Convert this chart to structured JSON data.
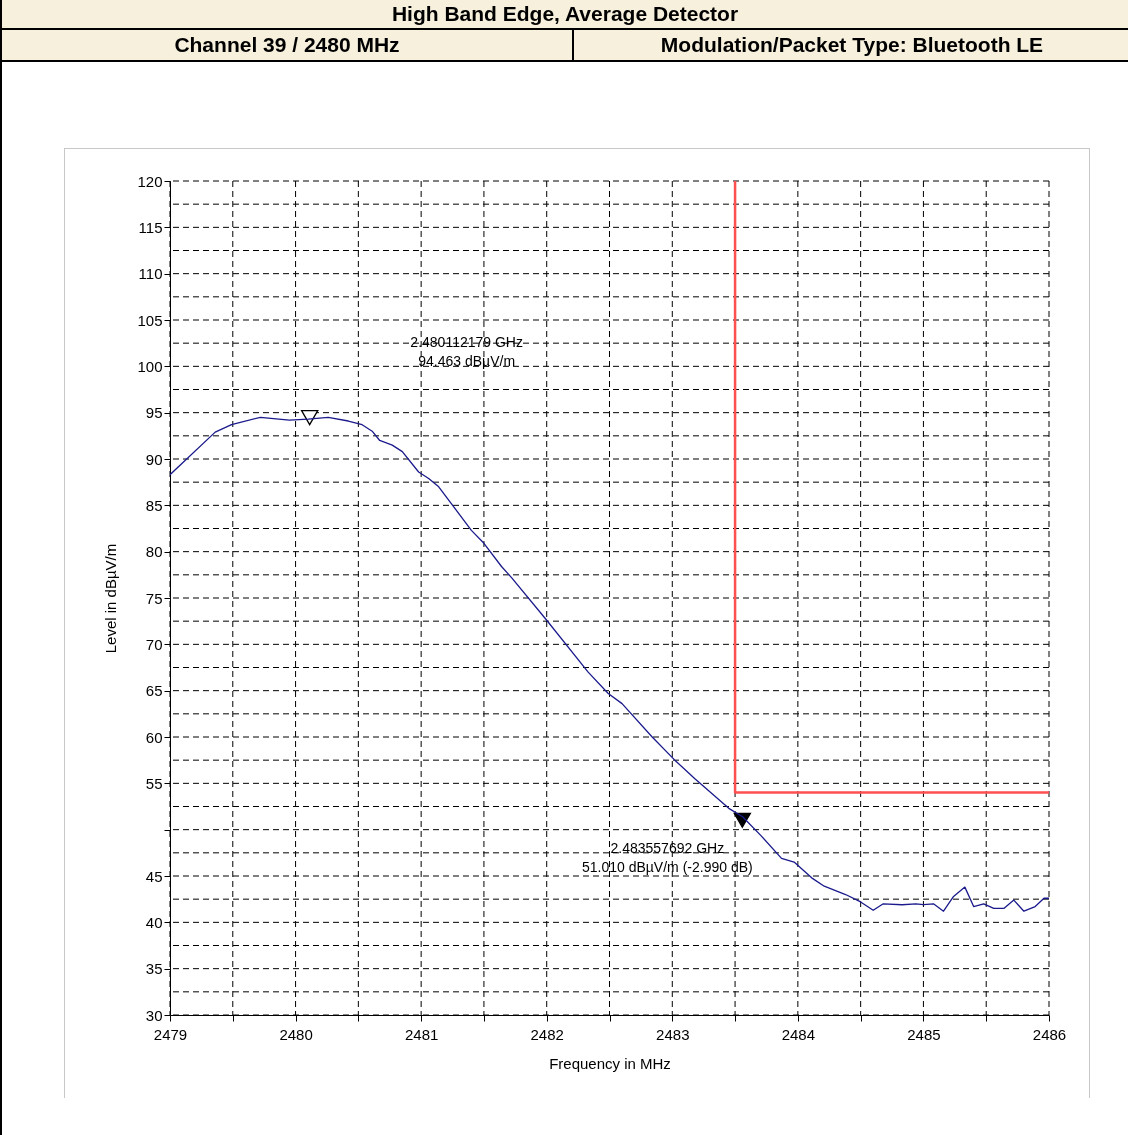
{
  "chart_data": {
    "type": "line",
    "title": "High Band Edge, Average Detector",
    "subtitle": [
      "Channel 39 / 2480 MHz",
      "Modulation/Packet Type: Bluetooth LE"
    ],
    "xlabel": "Frequency in MHz",
    "ylabel": "Level in dBµV/m",
    "xlim": [
      2479,
      2486
    ],
    "ylim": [
      30,
      120
    ],
    "xticks": [
      2479,
      {
        "value": 2479.5,
        "label": null
      },
      2480,
      {
        "value": 2480.5,
        "label": null
      },
      2481,
      {
        "value": 2481.5,
        "label": null
      },
      2482,
      {
        "value": 2482.5,
        "label": null
      },
      2483,
      {
        "value": 2483.5,
        "label": null
      },
      2484,
      {
        "value": 2484.5,
        "label": null
      },
      2485,
      {
        "value": 2485.5,
        "label": null
      },
      2486
    ],
    "yticks": [
      30,
      {
        "value": 32.5,
        "label": null
      },
      35,
      {
        "value": 37.5,
        "label": null
      },
      40,
      {
        "value": 42.5,
        "label": null
      },
      45,
      {
        "value": 47.5,
        "label": null
      },
      {
        "value": 50,
        "label": null
      },
      {
        "value": 52.5,
        "label": null
      },
      55,
      {
        "value": 57.5,
        "label": null
      },
      60,
      {
        "value": 62.5,
        "label": null
      },
      65,
      {
        "value": 67.5,
        "label": null
      },
      70,
      {
        "value": 72.5,
        "label": null
      },
      75,
      {
        "value": 77.5,
        "label": null
      },
      80,
      {
        "value": 82.5,
        "label": null
      },
      85,
      {
        "value": 87.5,
        "label": null
      },
      90,
      {
        "value": 92.5,
        "label": null
      },
      95,
      {
        "value": 97.5,
        "label": null
      },
      100,
      {
        "value": 102.5,
        "label": null
      },
      105,
      {
        "value": 107.5,
        "label": null
      },
      110,
      {
        "value": 112.5,
        "label": null
      },
      115,
      {
        "value": 117.5,
        "label": null
      },
      120
    ],
    "grid": true,
    "line_style": "solid",
    "series": [
      {
        "type": "line",
        "color": "#1a1a8c",
        "x": [
          2479,
          2479.36,
          2479.49,
          2479.72,
          2479.95,
          2480.1,
          2480.26,
          2480.42,
          2480.53,
          2480.61,
          2480.67,
          2480.77,
          2480.85,
          2480.98,
          2481.06,
          2481.14,
          2481.4,
          2481.5,
          2481.64,
          2481.72,
          2482,
          2482.33,
          2482.49,
          2482.6,
          2482.84,
          2483.02,
          2483.18,
          2483.45,
          2483.56,
          2483.71,
          2483.87,
          2483.97,
          2484.11,
          2484.21,
          2484.38,
          2484.5,
          2484.6,
          2484.68,
          2484.83,
          2484.94,
          2485,
          2485.08,
          2485.16,
          2485.24,
          2485.33,
          2485.4,
          2485.48,
          2485.56,
          2485.64,
          2485.72,
          2485.8,
          2485.89,
          2485.96,
          2486
        ],
        "values": [
          88.3,
          92.9,
          93.7,
          94.5,
          94.2,
          94.3,
          94.5,
          94.1,
          93.7,
          93,
          92,
          91.5,
          90.8,
          88.6,
          87.9,
          87,
          82.3,
          80.9,
          78.4,
          77.2,
          72.6,
          67,
          64.7,
          63.6,
          60,
          57.5,
          55.5,
          52.3,
          51.4,
          49.3,
          46.9,
          46.5,
          44.8,
          43.9,
          43,
          42.2,
          41.3,
          42,
          41.9,
          42,
          41.9,
          42,
          41.2,
          42.8,
          43.8,
          41.7,
          42,
          41.5,
          41.5,
          42.4,
          41.2,
          41.7,
          42.6,
          42.6
        ]
      },
      {
        "type": "line",
        "color": "#ff5050",
        "x": [
          2483.5,
          2483.5,
          2486
        ],
        "values": [
          120,
          54,
          54
        ]
      },
      {
        "type": "scatter",
        "marker": "triangle",
        "color": "#ffffff",
        "x": [
          2480.112179
        ],
        "values": [
          94.463
        ]
      },
      {
        "type": "scatter",
        "marker": "triangle",
        "color": "#000000",
        "x": [
          2483.557692
        ],
        "values": [
          51.01
        ]
      }
    ],
    "annotations": [
      "2.480112179 GHz\n94.463 dBµV/m",
      "2.483557692 GHz\n51.010 dBµV/m (-2.990 dB)"
    ]
  }
}
